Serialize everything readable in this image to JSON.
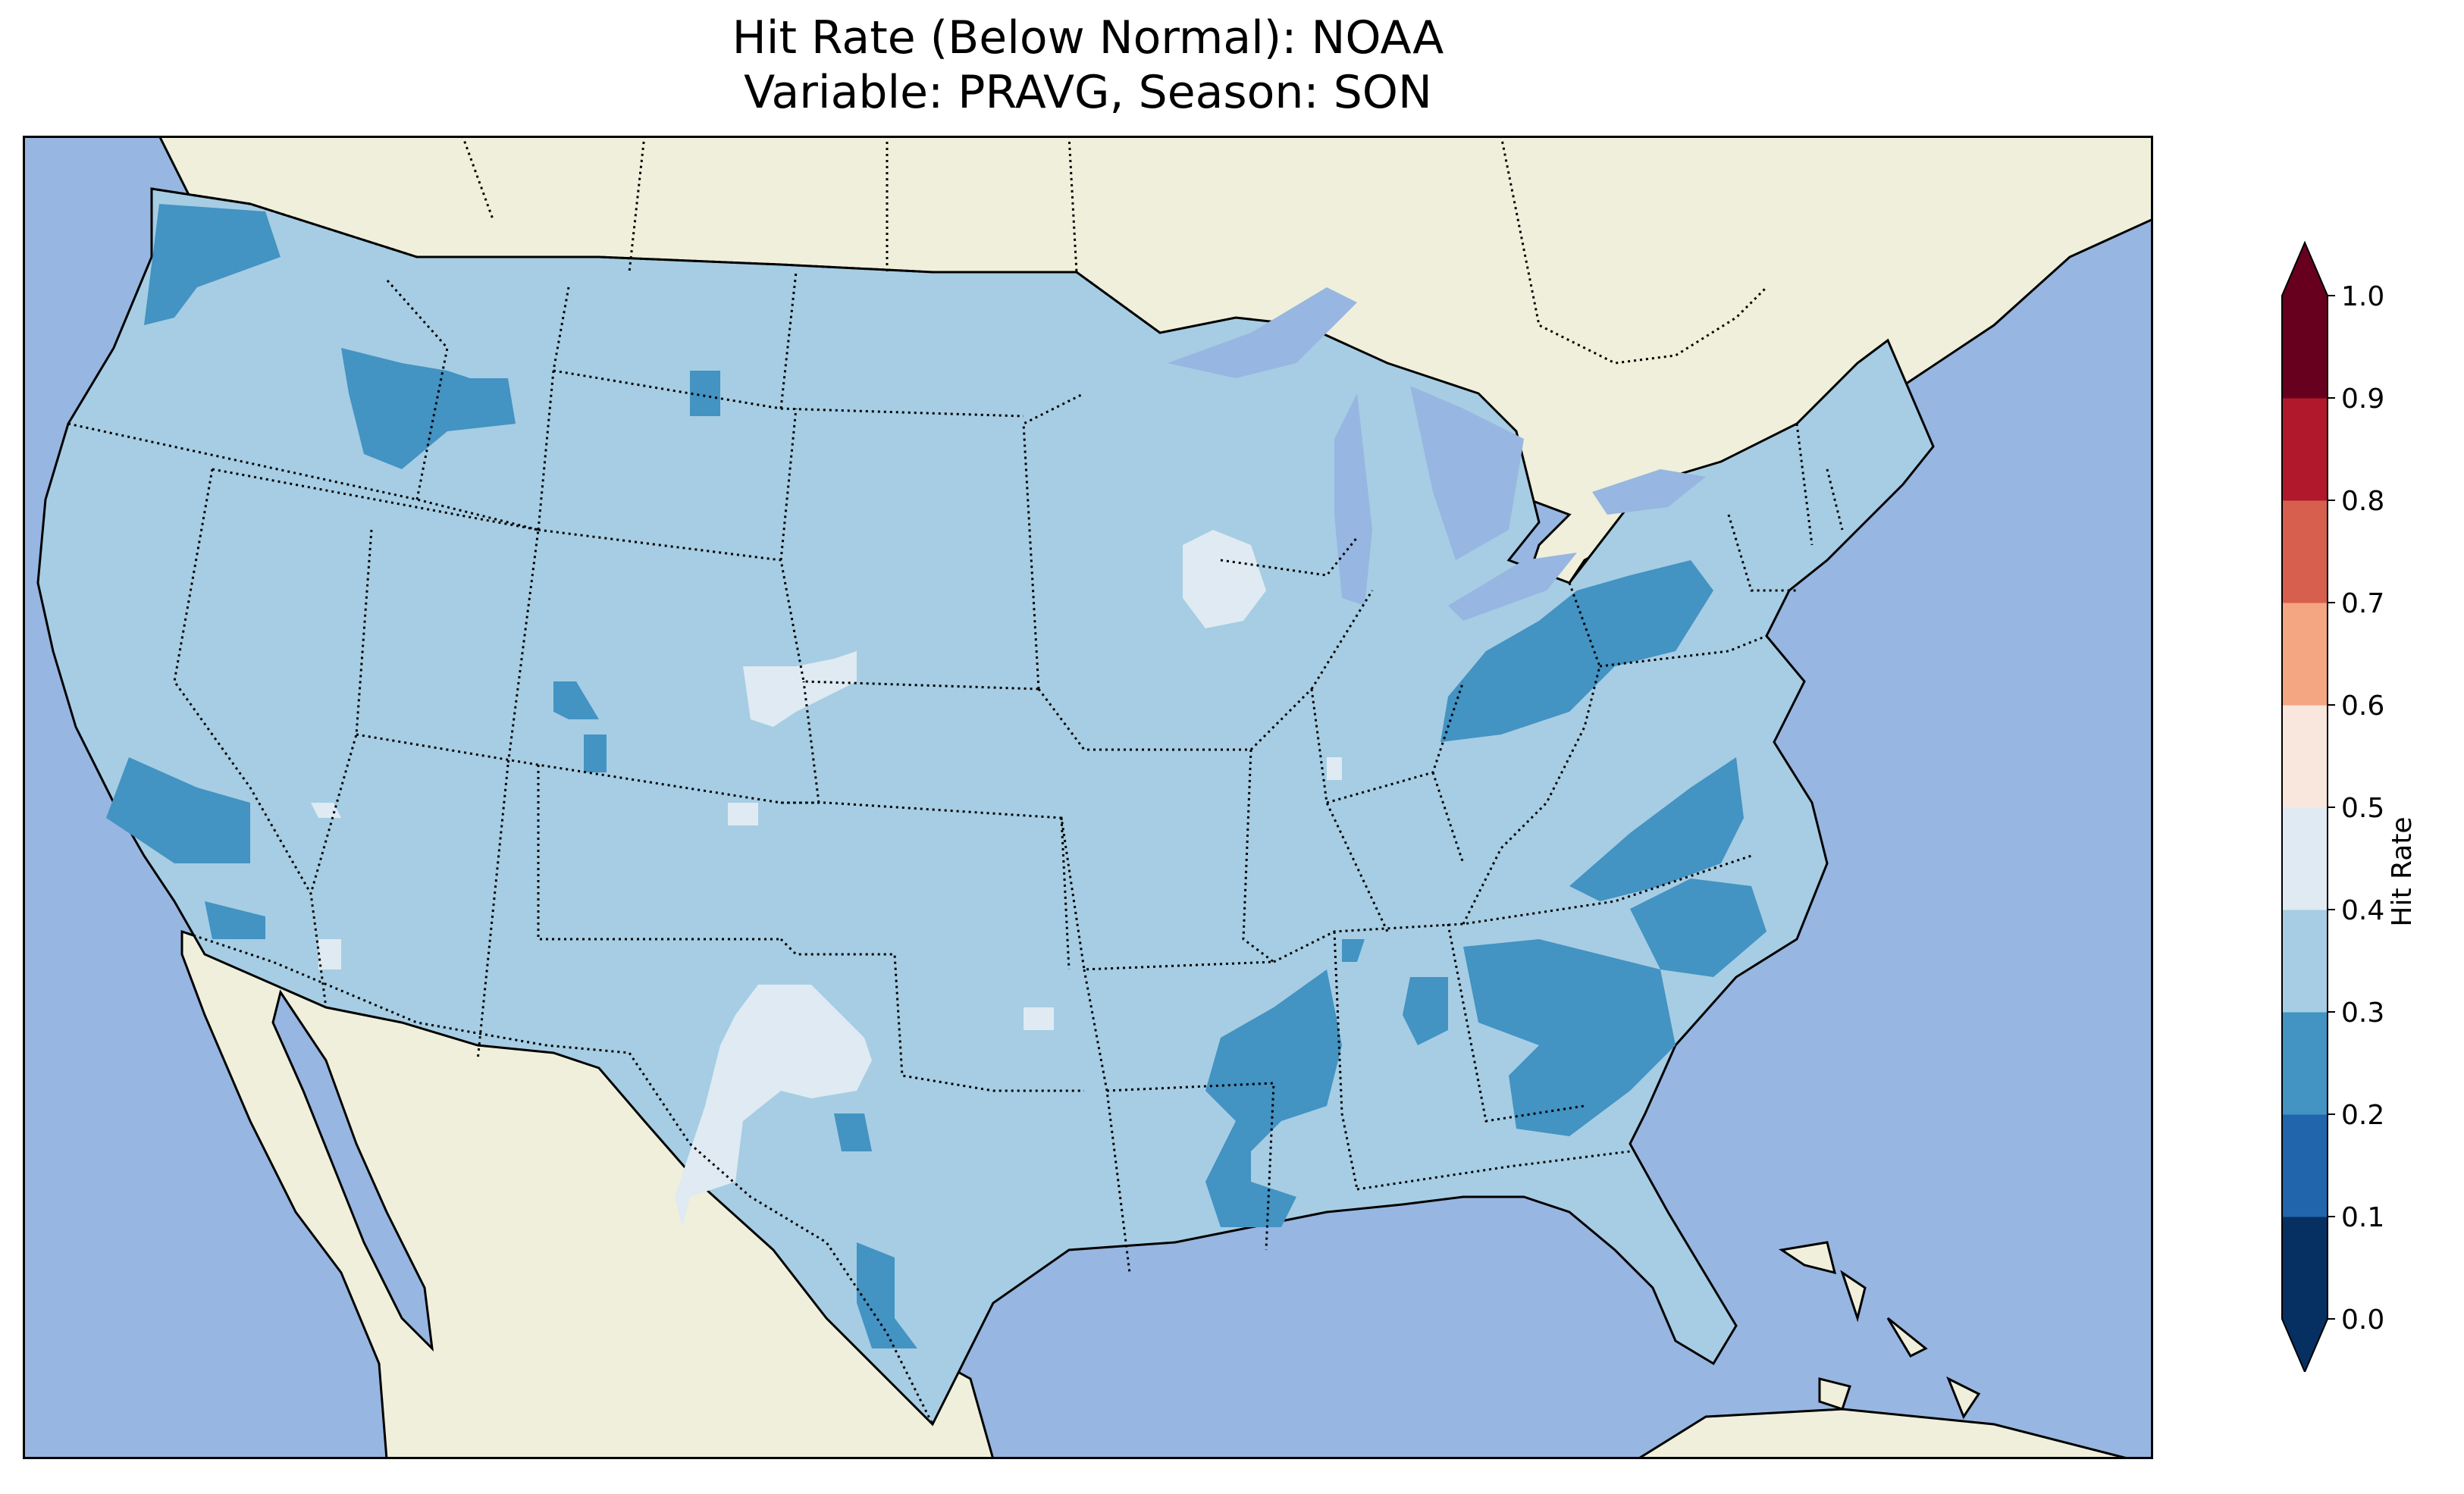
{
  "title": {
    "line1": "Hit Rate (Below Normal): NOAA",
    "line2": "Variable: PRAVG, Season: SON"
  },
  "colors": {
    "ocean": "#97b6e1",
    "land": "#efefdb",
    "coastline": "#000000",
    "state_border": "#000000"
  },
  "colorbar": {
    "label": "Hit Rate",
    "ticks": [
      "0.0",
      "0.1",
      "0.2",
      "0.3",
      "0.4",
      "0.5",
      "0.6",
      "0.7",
      "0.8",
      "0.9",
      "1.0"
    ],
    "extend": "both",
    "bins": [
      {
        "range": [
          0.0,
          0.1
        ],
        "color": "#053061"
      },
      {
        "range": [
          0.1,
          0.2
        ],
        "color": "#2166ac"
      },
      {
        "range": [
          0.2,
          0.3
        ],
        "color": "#4393c3"
      },
      {
        "range": [
          0.3,
          0.4
        ],
        "color": "#a6cde3"
      },
      {
        "range": [
          0.4,
          0.5
        ],
        "color": "#dfeaf2"
      },
      {
        "range": [
          0.5,
          0.6
        ],
        "color": "#f9e6dc"
      },
      {
        "range": [
          0.6,
          0.7
        ],
        "color": "#f4a582"
      },
      {
        "range": [
          0.7,
          0.8
        ],
        "color": "#d6604d"
      },
      {
        "range": [
          0.8,
          0.9
        ],
        "color": "#b2182b"
      },
      {
        "range": [
          0.9,
          1.0
        ],
        "color": "#67001f"
      }
    ]
  },
  "map_data": {
    "background_class": "0.3-0.4",
    "regions_0.2_0.3": [
      "Washington (Puget Sound)",
      "Idaho/Oregon border",
      "Central California",
      "Southern California coast",
      "Ohio/Indiana",
      "Pennsylvania",
      "Virginia/West Virginia",
      "North Carolina",
      "Georgia/South Carolina",
      "Mississippi/Louisiana",
      "Alabama",
      "South Texas coast"
    ],
    "regions_0.4_0.5": [
      "West Texas",
      "Wisconsin",
      "Nebraska/South Dakota border",
      "Northwest Nevada",
      "Central Colorado"
    ]
  }
}
